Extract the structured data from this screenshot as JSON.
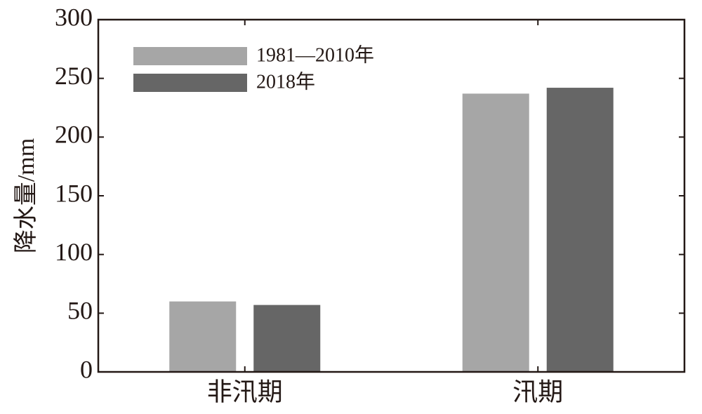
{
  "chart_data": {
    "type": "bar",
    "y_label": "降水量/mm",
    "categories": [
      "非汛期",
      "汛期"
    ],
    "series": [
      {
        "name": "1981—2010年",
        "color": "#a6a6a6",
        "values": [
          60,
          237
        ]
      },
      {
        "name": "2018年",
        "color": "#666666",
        "values": [
          57,
          242
        ]
      }
    ],
    "ylim": [
      0,
      300
    ],
    "yticks": [
      0,
      50,
      100,
      150,
      200,
      250,
      300
    ],
    "legend": "upper left"
  }
}
